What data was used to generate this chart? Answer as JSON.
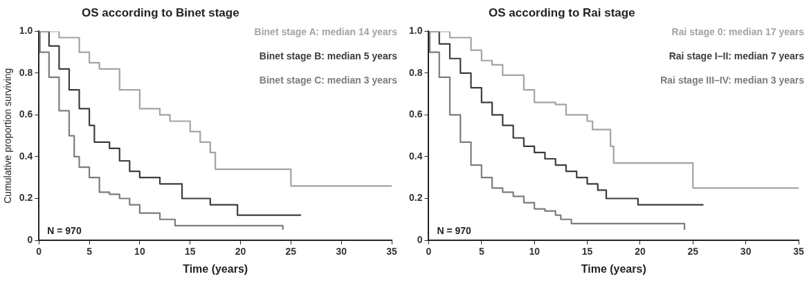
{
  "chart_data": [
    {
      "type": "step",
      "title": "OS according to Binet stage",
      "xlabel": "Time (years)",
      "ylabel": "Cumulative proportion surviving",
      "xlim": [
        0,
        35
      ],
      "xticks": [
        0,
        5,
        10,
        15,
        20,
        25,
        30,
        35
      ],
      "ylim": [
        0,
        1
      ],
      "yticks": [
        0,
        0.2,
        0.4,
        0.6,
        0.8,
        {
          "value": 1,
          "label": "1.0"
        }
      ],
      "grid": false,
      "legend": "top right",
      "marker": "none",
      "annotations": [
        "N = 970"
      ],
      "series": [
        {
          "name": "Binet stage A: median 14 years",
          "color": "#a3a3a3",
          "x": [
            0,
            2,
            4,
            5,
            6,
            8,
            10,
            12,
            13,
            15,
            16,
            17,
            17.5,
            25,
            35
          ],
          "values": [
            1,
            0.97,
            0.9,
            0.85,
            0.82,
            0.72,
            0.63,
            0.6,
            0.57,
            0.52,
            0.47,
            0.42,
            0.34,
            0.26,
            0.26
          ]
        },
        {
          "name": "Binet stage B: median 5 years",
          "color": "#3c3c3c",
          "x": [
            0,
            1,
            2,
            3,
            4,
            5,
            5.5,
            7,
            8,
            9,
            10,
            12,
            14.2,
            17,
            19.7,
            26
          ],
          "values": [
            1,
            0.93,
            0.82,
            0.72,
            0.63,
            0.55,
            0.47,
            0.44,
            0.38,
            0.33,
            0.3,
            0.27,
            0.2,
            0.17,
            0.12,
            0.12
          ]
        },
        {
          "name": "Binet stage C: median 3 years",
          "color": "#7c7c7c",
          "x": [
            0,
            0.1,
            1,
            2,
            3,
            3.5,
            4,
            5,
            6,
            7,
            8,
            9,
            10,
            12,
            13.5,
            24,
            24.2
          ],
          "values": [
            1,
            0.9,
            0.78,
            0.62,
            0.5,
            0.4,
            0.35,
            0.3,
            0.23,
            0.22,
            0.2,
            0.17,
            0.13,
            0.1,
            0.07,
            0.07,
            0.05
          ]
        }
      ]
    },
    {
      "type": "step",
      "title": "OS according to Rai stage",
      "xlabel": "Time (years)",
      "xlim": [
        0,
        35
      ],
      "xticks": [
        0,
        5,
        10,
        15,
        20,
        25,
        30,
        35
      ],
      "ylim": [
        0,
        1
      ],
      "yticks": [
        0,
        0.2,
        0.4,
        0.6,
        0.8,
        {
          "value": 1,
          "label": "1.0"
        }
      ],
      "grid": false,
      "legend": "top right",
      "marker": "none",
      "annotations": [
        "N = 970"
      ],
      "series": [
        {
          "name": "Rai stage 0: median 17 years",
          "color": "#a3a3a3",
          "x": [
            0,
            2,
            4,
            5,
            6,
            7,
            9,
            10,
            12,
            13,
            15,
            15.5,
            17,
            17.2,
            17.5,
            25,
            35
          ],
          "values": [
            1,
            0.97,
            0.91,
            0.86,
            0.84,
            0.79,
            0.72,
            0.66,
            0.65,
            0.6,
            0.57,
            0.53,
            0.53,
            0.45,
            0.37,
            0.25,
            0.25
          ]
        },
        {
          "name": "Rai stage I–II: median 7 years",
          "color": "#3c3c3c",
          "x": [
            0,
            1,
            2,
            3,
            4,
            5,
            6,
            7,
            8,
            9,
            10,
            11,
            12,
            13,
            14,
            15,
            16,
            16.8,
            19.8,
            26
          ],
          "values": [
            1,
            0.94,
            0.87,
            0.8,
            0.73,
            0.66,
            0.6,
            0.55,
            0.49,
            0.45,
            0.42,
            0.39,
            0.36,
            0.33,
            0.3,
            0.27,
            0.24,
            0.2,
            0.17,
            0.17
          ]
        },
        {
          "name": "Rai stage III–IV: median 3 years",
          "color": "#7c7c7c",
          "x": [
            0,
            0.1,
            1,
            2,
            3,
            4,
            5,
            6,
            7,
            8,
            9,
            10,
            11,
            12,
            12.5,
            13.5,
            24,
            24.2
          ],
          "values": [
            1,
            0.9,
            0.78,
            0.6,
            0.47,
            0.36,
            0.3,
            0.25,
            0.23,
            0.21,
            0.18,
            0.15,
            0.14,
            0.12,
            0.1,
            0.08,
            0.08,
            0.05
          ]
        }
      ]
    }
  ]
}
